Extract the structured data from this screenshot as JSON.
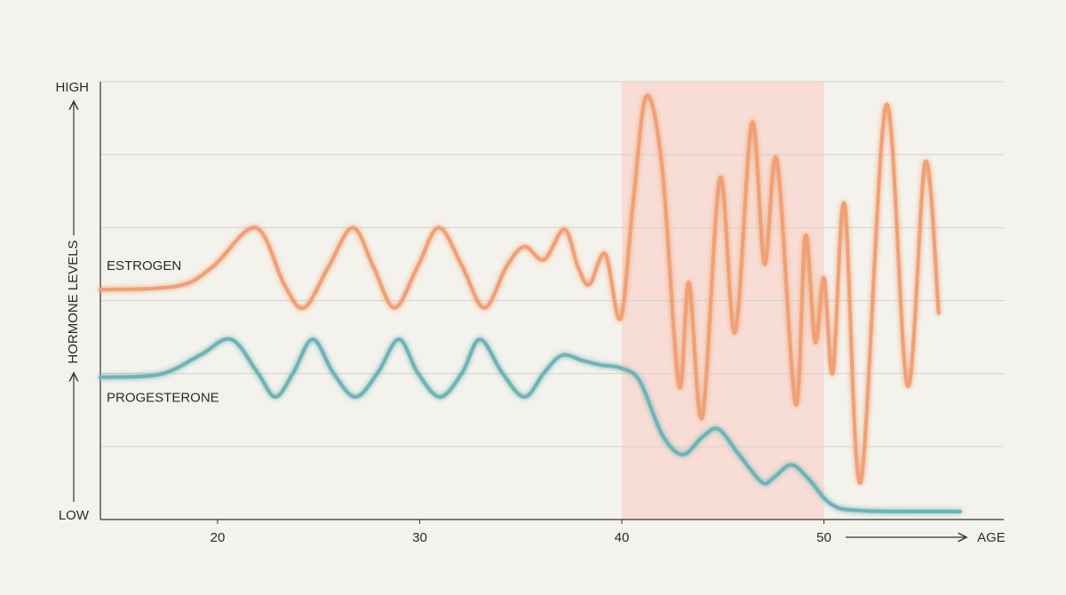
{
  "chart_data": {
    "type": "line",
    "y_label": "HORMONE LEVELS",
    "x_label": "AGE",
    "xlim": [
      14.2,
      58.9
    ],
    "xticks": [
      20,
      30,
      40,
      50
    ],
    "ylim": [
      0,
      6
    ],
    "yticks": [
      {
        "value": 0,
        "label": "LOW"
      },
      {
        "value": 1,
        "label": null
      },
      {
        "value": 2,
        "label": null
      },
      {
        "value": 3,
        "label": null
      },
      {
        "value": 4,
        "label": null
      },
      {
        "value": 5,
        "label": null
      },
      {
        "value": 6,
        "label": "HIGH"
      }
    ],
    "grid": true,
    "highlight_x": [
      40,
      50
    ],
    "highlight_color": "#f8d6cd",
    "series": [
      {
        "name": "ESTROGEN",
        "color": "#f0a075",
        "x": [
          14.19,
          18.02,
          19.78,
          21.89,
          23.3,
          24.27,
          25.5,
          26.69,
          27.7,
          28.75,
          29.9,
          30.95,
          32.1,
          33.2,
          34.3,
          35.18,
          36.15,
          37.16,
          37.82,
          38.39,
          39.18,
          39.93,
          40.55,
          41.21,
          42.0,
          42.83,
          43.32,
          43.98,
          44.86,
          45.6,
          46.44,
          47.06,
          47.67,
          48.6,
          49.08,
          49.57,
          50.0,
          50.44,
          51.02,
          51.81,
          53.08,
          54.14,
          55.02,
          55.68
        ],
        "values": [
          3.15,
          3.2,
          3.47,
          4.0,
          3.22,
          2.9,
          3.47,
          4.0,
          3.47,
          2.9,
          3.47,
          4.0,
          3.47,
          2.9,
          3.47,
          3.74,
          3.56,
          3.98,
          3.47,
          3.22,
          3.64,
          2.75,
          4.32,
          5.8,
          4.81,
          1.83,
          3.25,
          1.4,
          4.68,
          2.56,
          5.44,
          3.5,
          4.93,
          1.58,
          3.89,
          2.43,
          3.31,
          2.01,
          4.32,
          0.51,
          5.68,
          1.83,
          4.9,
          2.83
        ]
      },
      {
        "name": "PROGESTERONE",
        "color": "#6fb3b5",
        "x": [
          14.19,
          17.14,
          19.12,
          20.66,
          21.98,
          22.86,
          23.74,
          24.71,
          25.72,
          26.82,
          27.92,
          28.97,
          29.9,
          31.0,
          32.1,
          32.98,
          34.08,
          35.18,
          36.15,
          37.03,
          38.04,
          38.92,
          40.02,
          40.9,
          42.0,
          43.01,
          43.98,
          44.77,
          45.74,
          46.93,
          47.5,
          48.38,
          49.26,
          50.36,
          51.9,
          56.74
        ],
        "values": [
          1.95,
          1.99,
          2.25,
          2.47,
          2.01,
          1.68,
          2.01,
          2.47,
          2.01,
          1.68,
          2.01,
          2.47,
          2.01,
          1.68,
          2.01,
          2.47,
          2.01,
          1.68,
          2.01,
          2.25,
          2.18,
          2.12,
          2.07,
          1.89,
          1.16,
          0.89,
          1.13,
          1.24,
          0.91,
          0.51,
          0.57,
          0.75,
          0.55,
          0.21,
          0.12,
          0.11
        ]
      }
    ]
  }
}
